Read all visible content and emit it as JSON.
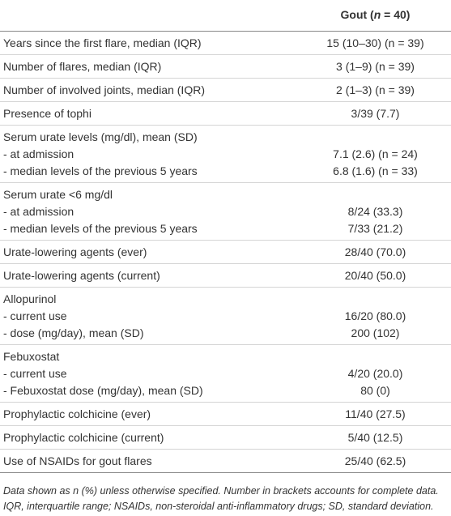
{
  "table": {
    "header": {
      "pre": "Gout (",
      "n": "n",
      "post": " = 40)"
    },
    "groups": [
      {
        "rows": [
          [
            "Years since the first flare, median (IQR)",
            "15 (10–30) (n = 39)"
          ]
        ]
      },
      {
        "rows": [
          [
            "Number of flares, median (IQR)",
            "3 (1–9) (n = 39)"
          ]
        ]
      },
      {
        "rows": [
          [
            "Number of involved joints, median (IQR)",
            "2 (1–3) (n = 39)"
          ]
        ]
      },
      {
        "rows": [
          [
            "Presence of tophi",
            "3/39 (7.7)"
          ]
        ]
      },
      {
        "label": "Serum urate levels (mg/dl), mean (SD)",
        "rows": [
          [
            "- at admission",
            "7.1 (2.6) (n = 24)"
          ],
          [
            "- median levels of the previous 5 years",
            "6.8 (1.6) (n = 33)"
          ]
        ]
      },
      {
        "label": "Serum urate <6 mg/dl",
        "rows": [
          [
            "- at admission",
            "8/24 (33.3)"
          ],
          [
            "- median levels of the previous 5 years",
            "7/33 (21.2)"
          ]
        ]
      },
      {
        "rows": [
          [
            "Urate-lowering agents (ever)",
            "28/40 (70.0)"
          ]
        ]
      },
      {
        "rows": [
          [
            "Urate-lowering agents (current)",
            "20/40 (50.0)"
          ]
        ]
      },
      {
        "label": "Allopurinol",
        "rows": [
          [
            "- current use",
            "16/20 (80.0)"
          ],
          [
            "- dose (mg/day), mean (SD)",
            "200 (102)"
          ]
        ]
      },
      {
        "label": "Febuxostat",
        "rows": [
          [
            "- current use",
            "4/20 (20.0)"
          ],
          [
            "- Febuxostat dose (mg/day), mean (SD)",
            "80 (0)"
          ]
        ]
      },
      {
        "rows": [
          [
            "Prophylactic colchicine (ever)",
            "11/40 (27.5)"
          ]
        ]
      },
      {
        "rows": [
          [
            "Prophylactic colchicine (current)",
            "5/40 (12.5)"
          ]
        ]
      },
      {
        "rows": [
          [
            "Use of NSAIDs for gout flares",
            "25/40 (62.5)"
          ]
        ]
      }
    ],
    "footnote": "Data shown as n (%) unless otherwise specified. Number in brackets accounts for complete data. IQR, interquartile range; NSAIDs, non-steroidal anti-inflammatory drugs; SD, standard deviation."
  }
}
